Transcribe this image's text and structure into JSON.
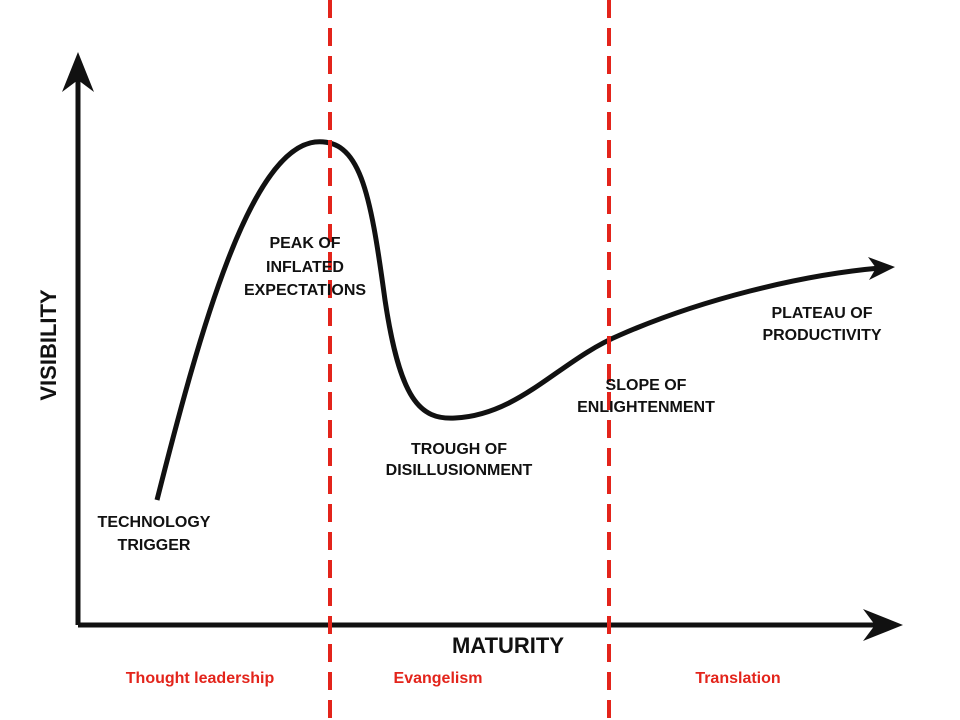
{
  "axes": {
    "y_label": "VISIBILITY",
    "x_label": "MATURITY"
  },
  "phases": [
    {
      "lines": [
        "TECHNOLOGY",
        "TRIGGER"
      ]
    },
    {
      "lines": [
        "PEAK OF",
        "INFLATED",
        "EXPECTATIONS"
      ]
    },
    {
      "lines": [
        "TROUGH OF",
        "DISILLUSIONMENT"
      ]
    },
    {
      "lines": [
        "SLOPE OF",
        "ENLIGHTENMENT"
      ]
    },
    {
      "lines": [
        "PLATEAU OF",
        "PRODUCTIVITY"
      ]
    }
  ],
  "sections": [
    "Thought leadership",
    "Evangelism",
    "Translation"
  ]
}
